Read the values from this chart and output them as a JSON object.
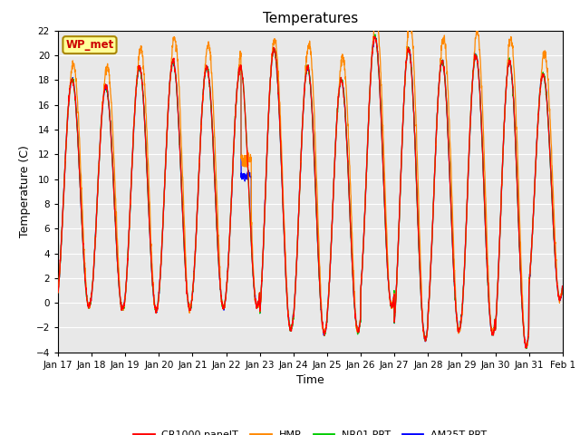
{
  "title": "Temperatures",
  "xlabel": "Time",
  "ylabel": "Temperature (C)",
  "ylim": [
    -4,
    22
  ],
  "yticks": [
    -4,
    -2,
    0,
    2,
    4,
    6,
    8,
    10,
    12,
    14,
    16,
    18,
    20,
    22
  ],
  "xtick_labels": [
    "Jan 17",
    "Jan 18",
    "Jan 19",
    "Jan 20",
    "Jan 21",
    "Jan 22",
    "Jan 23",
    "Jan 24",
    "Jan 25",
    "Jan 26",
    "Jan 27",
    "Jan 28",
    "Jan 29",
    "Jan 30",
    "Jan 31",
    "Feb 1"
  ],
  "plot_bg_color": "#e8e8e8",
  "legend_entries": [
    "CR1000 panelT",
    "HMP",
    "NR01 PRT",
    "AM25T PRT"
  ],
  "legend_colors": [
    "#ff0000",
    "#ff8800",
    "#00cc00",
    "#0000ff"
  ],
  "annotation_text": "WP_met",
  "annotation_bg": "#ffff99",
  "annotation_border": "#aa8800",
  "annotation_fg": "#cc0000",
  "num_days": 15,
  "points_per_day": 144,
  "day_maxes": [
    18.0,
    17.5,
    19.0,
    19.5,
    19.0,
    19.0,
    20.5,
    19.0,
    18.0,
    21.5,
    20.5,
    19.5,
    20.0,
    19.5,
    18.5
  ],
  "day_mins": [
    -0.3,
    -0.5,
    -0.6,
    -0.5,
    -0.4,
    -0.3,
    -2.2,
    -2.5,
    -2.3,
    -0.3,
    -3.0,
    -2.2,
    -2.5,
    -3.5,
    0.3
  ],
  "hmp_day_offsets": [
    2.5,
    3.0,
    3.0,
    3.5,
    3.5,
    3.0,
    1.5,
    3.5,
    3.5,
    3.0,
    4.0,
    3.5,
    3.5,
    3.5,
    3.0
  ]
}
